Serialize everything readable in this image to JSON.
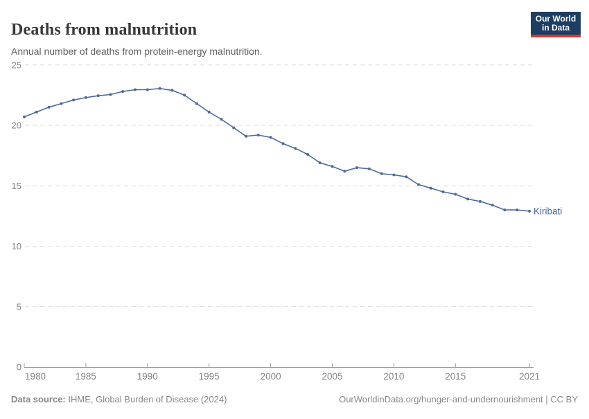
{
  "header": {
    "title": "Deaths from malnutrition",
    "subtitle": "Annual number of deaths from protein-energy malnutrition.",
    "logo": {
      "line1": "Our World",
      "line2": "in Data"
    }
  },
  "chart_data": {
    "type": "line",
    "title": "Deaths from malnutrition",
    "subtitle": "Annual number of deaths from protein-energy malnutrition.",
    "x": [
      1980,
      1981,
      1982,
      1983,
      1984,
      1985,
      1986,
      1987,
      1988,
      1989,
      1990,
      1991,
      1992,
      1993,
      1994,
      1995,
      1996,
      1997,
      1998,
      1999,
      2000,
      2001,
      2002,
      2003,
      2004,
      2005,
      2006,
      2007,
      2008,
      2009,
      2010,
      2011,
      2012,
      2013,
      2014,
      2015,
      2016,
      2017,
      2018,
      2019,
      2020,
      2021
    ],
    "series": [
      {
        "name": "Kiribati",
        "color": "#4C6A9C",
        "values": [
          20.7,
          21.1,
          21.5,
          21.8,
          22.1,
          22.3,
          22.45,
          22.55,
          22.8,
          22.95,
          22.95,
          23.05,
          22.9,
          22.5,
          21.8,
          21.1,
          20.5,
          19.8,
          19.1,
          19.2,
          19.0,
          18.5,
          18.1,
          17.6,
          16.9,
          16.6,
          16.2,
          16.5,
          16.4,
          16.0,
          15.9,
          15.75,
          15.1,
          14.8,
          14.5,
          14.3,
          13.9,
          13.7,
          13.4,
          13.0,
          13.0,
          12.9
        ]
      }
    ],
    "x_ticks": [
      1980,
      1985,
      1990,
      1995,
      2000,
      2005,
      2010,
      2015,
      2021
    ],
    "y_ticks": [
      0,
      5,
      10,
      15,
      20,
      25
    ],
    "xlim": [
      1980,
      2021
    ],
    "ylim": [
      0,
      25
    ],
    "grid": "horizontal-dashed",
    "legend": "end-of-line-label",
    "end_label": "Kiribati"
  },
  "footer": {
    "source_label": "Data source:",
    "source_value": " IHME, Global Burden of Disease (2024)",
    "link": "OurWorldinData.org/hunger-and-undernourishment | CC BY"
  },
  "colors": {
    "series": "#4C6A9C",
    "logo_bg": "#1d3d63",
    "logo_accent": "#cc3b31",
    "grid": "#dcdcdc",
    "axis": "#9a9a9a",
    "tick_text": "#848484",
    "title_text": "#383838",
    "subtitle_text": "#616161",
    "footer_text": "#878787"
  }
}
